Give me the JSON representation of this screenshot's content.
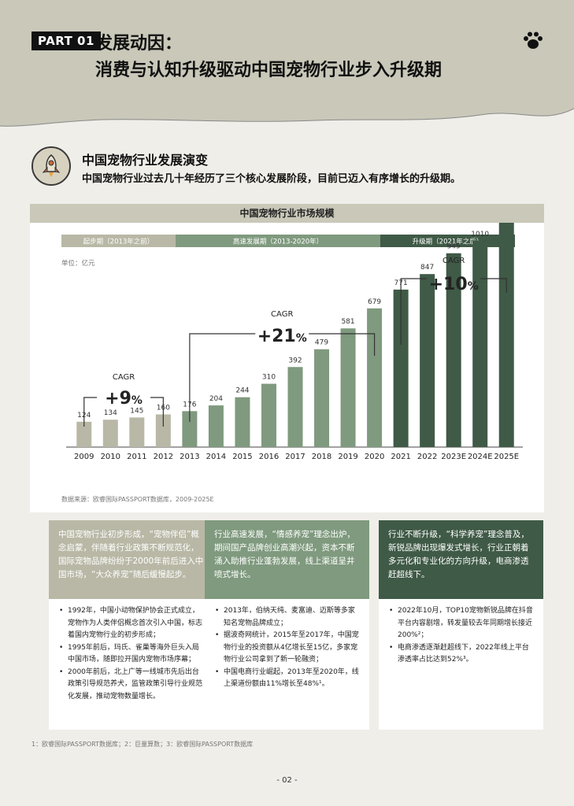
{
  "header": {
    "part_label": "PART 01",
    "title_line1": "发展动因：",
    "title_line2": "消费与认知升级驱动中国宠物行业步入升级期"
  },
  "section": {
    "title": "中国宠物行业发展演变",
    "subtitle": "中国宠物行业过去几十年经历了三个核心发展阶段，目前已迈入有序增长的升级期。"
  },
  "chart_data": {
    "type": "bar",
    "title": "中国宠物行业市场规模",
    "unit_label": "单位：亿元",
    "categories": [
      "2009",
      "2010",
      "2011",
      "2012",
      "2013",
      "2014",
      "2015",
      "2016",
      "2017",
      "2018",
      "2019",
      "2020",
      "2021",
      "2022",
      "2023E",
      "2024E",
      "2025E"
    ],
    "values": [
      124,
      134,
      145,
      160,
      176,
      204,
      244,
      310,
      392,
      479,
      581,
      679,
      771,
      847,
      949,
      1010,
      1124
    ],
    "phases": [
      {
        "label": "起步期（2013年之前）",
        "color": "#b9b8a6"
      },
      {
        "label": "高速发展期（2013-2020年）",
        "color": "#7f9a7e"
      },
      {
        "label": "升级期（2021年之后）",
        "color": "#3f5a46"
      }
    ],
    "bar_colors": [
      "#b9b8a6",
      "#b9b8a6",
      "#b9b8a6",
      "#b9b8a6",
      "#7f9a7e",
      "#7f9a7e",
      "#7f9a7e",
      "#7f9a7e",
      "#7f9a7e",
      "#7f9a7e",
      "#7f9a7e",
      "#7f9a7e",
      "#3f5a46",
      "#3f5a46",
      "#3f5a46",
      "#3f5a46",
      "#3f5a46"
    ],
    "cagr": [
      {
        "label": "CAGR",
        "value": "+9",
        "unit": "%",
        "from": 0,
        "to": 3
      },
      {
        "label": "CAGR",
        "value": "+21",
        "unit": "%",
        "from": 4,
        "to": 11
      },
      {
        "label": "CAGR",
        "value": "+10",
        "unit": "%",
        "from": 12,
        "to": 16
      }
    ],
    "ylim": [
      0,
      1200
    ],
    "source": "数据来源：欧睿国际PASSPORT数据库，2009-2025E"
  },
  "columns": [
    {
      "color": "#b9b8a6",
      "summary": "中国宠物行业初步形成，“宠物伴侣”概念启蒙，伴随着行业政策不断规范化，国际宠物品牌纷纷于2000年前后进入中国市场，“大众养宠”随后缓慢起步。",
      "bullets": [
        "1992年，中国小动物保护协会正式成立，宠物作为人类伴侣概念首次引入中国，标志着国内宠物行业的初步形成；",
        "1995年前后，玛氏、雀巢等海外巨头入局中国市场，随即拉开国内宠物市场序幕；",
        "2000年前后，北上广等一线城市先后出台政策引导规范养犬，监管政策引导行业规范化发展，推动宠物数量增长。"
      ]
    },
    {
      "color": "#7f9a7e",
      "summary": "行业高速发展，“情感养宠”理念出炉，期间国产品牌创业高潮兴起，资本不断涌入助推行业蓬勃发展，线上渠道呈井喷式增长。",
      "bullets": [
        "2013年，伯纳天纯、麦富迪、迈斯等多家知名宠物品牌成立；",
        "据波奇网统计，2015年至2017年，中国宠物行业的投资额从4亿增长至15亿，多家宠物行业公司拿到了新一轮融资；",
        "中国电商行业崛起，2013年至2020年，线上渠道份额由11%增长至48%¹。"
      ]
    },
    {
      "color": "#3f5a46",
      "summary": "行业不断升级，“科学养宠”理念普及，新锐品牌出现爆发式增长，行业正朝着多元化和专业化的方向升级，电商渗透赶超线下。",
      "bullets": [
        "2022年10月，TOP10宠物新锐品牌在抖音平台内容剧增，转发量较去年同期增长接近200%²；",
        "电商渗透逐渐赶超线下，2022年线上平台渗透率占比达到52%³。"
      ]
    }
  ],
  "footnote": "1：欧睿国际PASSPORT数据库；2：巨量算数；3：欧睿国际PASSPORT数据库",
  "page_number": "- 02 -"
}
